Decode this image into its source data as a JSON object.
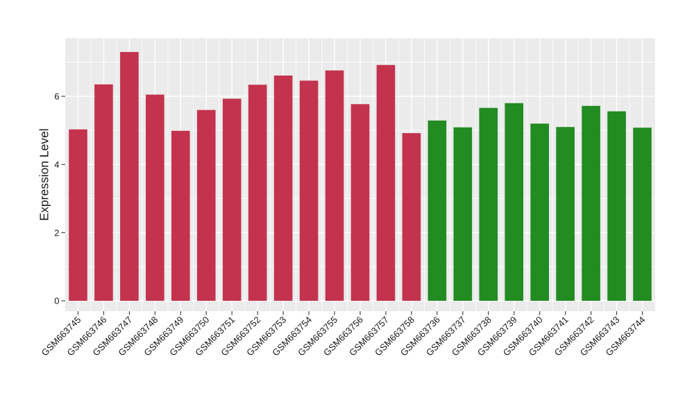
{
  "chart_data": {
    "type": "bar",
    "title": "",
    "ylabel": "Expression Level",
    "xlabel": "",
    "ylim": [
      0,
      7.8
    ],
    "yticks": [
      0,
      2,
      4,
      6
    ],
    "minor_gridlines": [
      1,
      3,
      5,
      7
    ],
    "grid": true,
    "legend_position": "none",
    "categories": [
      "GSM663745",
      "GSM663746",
      "GSM663747",
      "GSM663748",
      "GSM663749",
      "GSM663750",
      "GSM663751",
      "GSM663752",
      "GSM663753",
      "GSM663754",
      "GSM663755",
      "GSM663756",
      "GSM663757",
      "GSM663758",
      "GSM663736",
      "GSM663737",
      "GSM663738",
      "GSM663739",
      "GSM663740",
      "GSM663741",
      "GSM663742",
      "GSM663743",
      "GSM663744"
    ],
    "values": [
      5.03,
      6.35,
      7.3,
      6.05,
      4.99,
      5.6,
      5.93,
      6.34,
      6.61,
      6.46,
      6.76,
      5.77,
      6.92,
      4.92,
      5.29,
      5.09,
      5.66,
      5.8,
      5.2,
      5.1,
      5.72,
      5.56,
      5.08
    ],
    "bar_colors": [
      "#C3334E",
      "#C3334E",
      "#C3334E",
      "#C3334E",
      "#C3334E",
      "#C3334E",
      "#C3334E",
      "#C3334E",
      "#C3334E",
      "#C3334E",
      "#C3334E",
      "#C3334E",
      "#C3334E",
      "#C3334E",
      "#228B22",
      "#228B22",
      "#228B22",
      "#228B22",
      "#228B22",
      "#228B22",
      "#228B22",
      "#228B22",
      "#228B22"
    ]
  },
  "style": {
    "panel_bg": "#EBEBEB",
    "grid_color": "#FFFFFF",
    "axis_text_color": "#1A1A1A",
    "tick_color": "#333333"
  }
}
